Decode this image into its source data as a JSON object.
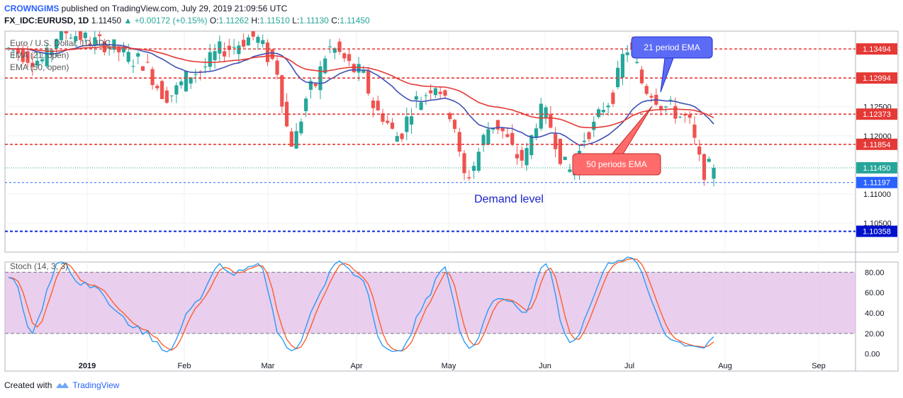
{
  "header": {
    "author": "CROWNGIMS",
    "published_text": "published on TradingView.com, July 29, 2019 21:09:56 UTC",
    "symbol": "FX_IDC:EURUSD, 1D",
    "last": "1.11450",
    "change_arrow": "▲",
    "change": "+0.00172 (+0.15%)",
    "open_label": "O:",
    "open": "1.11262",
    "high_label": "H:",
    "high": "1.11510",
    "low_label": "L:",
    "low": "1.11130",
    "close_label": "C:",
    "close": "1.11450"
  },
  "legend": {
    "title": "Euro / U.S. Dollar, 1D, IDC",
    "ema21": "EMA (21, open)",
    "ema50": "EMA (50, open)",
    "stoch": "Stoch (14, 3, 3)"
  },
  "footer": {
    "created_with": "Created with",
    "brand": "TradingView"
  },
  "colors": {
    "up": "#26a69a",
    "down": "#ef5350",
    "ema21": "#3f51b5",
    "ema50": "#e53935",
    "resistance": "#e53935",
    "support": "#1e3fd8",
    "stoch_k": "#2196f3",
    "stoch_d": "#ff5722",
    "stoch_band": "#e1bee7"
  },
  "chart_data": [
    {
      "type": "candlestick",
      "title": "Euro / U.S. Dollar, 1D, IDC",
      "ylim": [
        1.1,
        1.138
      ],
      "y_ticks": [
        "1.12500",
        "1.12000",
        "1.11000",
        "1.10500"
      ],
      "x_ticks": [
        "2019",
        "Feb",
        "Mar",
        "Apr",
        "May",
        "Jun",
        "Jul",
        "Aug",
        "Sep"
      ],
      "price_levels": [
        {
          "value": 1.13494,
          "label": "1.13494",
          "style": "resistance"
        },
        {
          "value": 1.12994,
          "label": "1.12994",
          "style": "resistance"
        },
        {
          "value": 1.12373,
          "label": "1.12373",
          "style": "resistance"
        },
        {
          "value": 1.11854,
          "label": "1.11854",
          "style": "resistance"
        },
        {
          "value": 1.1145,
          "label": "1.11450",
          "style": "last"
        },
        {
          "value": 1.11197,
          "label": "1.11197",
          "style": "support"
        },
        {
          "value": 1.10358,
          "label": "1.10358",
          "style": "support-strong"
        }
      ],
      "annotations": [
        {
          "text": "21 period EMA",
          "kind": "callout-blue"
        },
        {
          "text": "50 periods EMA",
          "kind": "callout-red"
        },
        {
          "text": "Demand level",
          "kind": "text"
        }
      ],
      "series_names": [
        "EMA (21, open)",
        "EMA (50, open)"
      ]
    },
    {
      "type": "line",
      "title": "Stoch (14, 3, 3)",
      "ylim": [
        -3,
        90
      ],
      "y_ticks": [
        "80.00",
        "60.00",
        "40.00",
        "20.00",
        "0.00"
      ],
      "bands": [
        20,
        80
      ]
    }
  ]
}
